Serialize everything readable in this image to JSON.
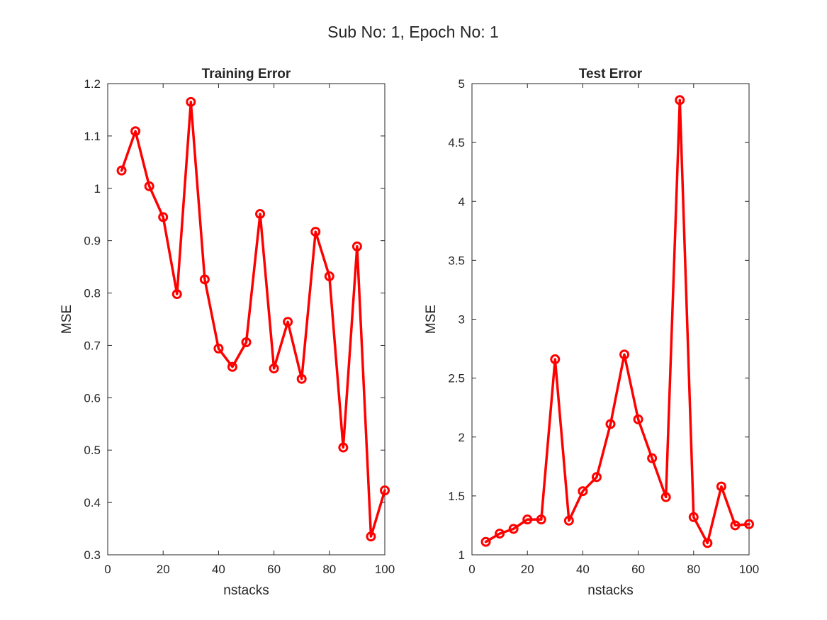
{
  "figure": {
    "title": "Sub No: 1, Epoch No: 1",
    "background": "#ffffff"
  },
  "chart_data": [
    {
      "type": "line",
      "title": "Training Error",
      "xlabel": "nstacks",
      "ylabel": "MSE",
      "xlim": [
        0,
        100
      ],
      "ylim": [
        0.3,
        1.2
      ],
      "xticks": [
        0,
        20,
        40,
        60,
        80,
        100
      ],
      "xtick_labels": [
        "0",
        "20",
        "40",
        "60",
        "80",
        "100"
      ],
      "yticks": [
        0.3,
        0.4,
        0.5,
        0.6,
        0.7,
        0.8,
        0.9,
        1.0,
        1.1,
        1.2
      ],
      "ytick_labels": [
        "0.3",
        "0.4",
        "0.5",
        "0.6",
        "0.7",
        "0.8",
        "0.9",
        "1",
        "1.1",
        "1.2"
      ],
      "grid": false,
      "color": "#ff0000",
      "marker": "circle",
      "series": [
        {
          "x": [
            5,
            10,
            15,
            20,
            25,
            30,
            35,
            40,
            45,
            50,
            55,
            60,
            65,
            70,
            75,
            80,
            85,
            90,
            95,
            100
          ],
          "values": [
            1.034,
            1.109,
            1.004,
            0.945,
            0.798,
            1.165,
            0.826,
            0.694,
            0.659,
            0.706,
            0.951,
            0.656,
            0.745,
            0.636,
            0.917,
            0.832,
            0.505,
            0.889,
            0.335,
            0.423
          ]
        }
      ]
    },
    {
      "type": "line",
      "title": "Test Error",
      "xlabel": "nstacks",
      "ylabel": "MSE",
      "xlim": [
        0,
        100
      ],
      "ylim": [
        1,
        5
      ],
      "xticks": [
        0,
        20,
        40,
        60,
        80,
        100
      ],
      "xtick_labels": [
        "0",
        "20",
        "40",
        "60",
        "80",
        "100"
      ],
      "yticks": [
        1,
        1.5,
        2,
        2.5,
        3,
        3.5,
        4,
        4.5,
        5
      ],
      "ytick_labels": [
        "1",
        "1.5",
        "2",
        "2.5",
        "3",
        "3.5",
        "4",
        "4.5",
        "5"
      ],
      "grid": false,
      "color": "#ff0000",
      "marker": "circle",
      "series": [
        {
          "x": [
            5,
            10,
            15,
            20,
            25,
            30,
            35,
            40,
            45,
            50,
            55,
            60,
            65,
            70,
            75,
            80,
            85,
            90,
            95,
            100
          ],
          "values": [
            1.11,
            1.18,
            1.22,
            1.3,
            1.3,
            2.66,
            1.29,
            1.54,
            1.66,
            2.11,
            2.7,
            2.15,
            1.82,
            1.49,
            4.86,
            1.32,
            1.1,
            1.58,
            1.25,
            1.26
          ]
        }
      ]
    }
  ]
}
